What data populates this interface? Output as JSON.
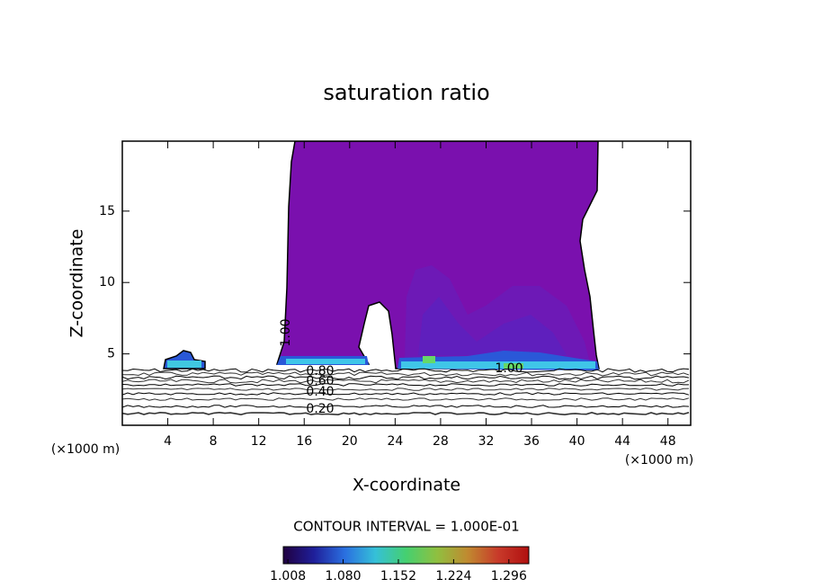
{
  "chart_data": {
    "type": "contour",
    "title": "saturation ratio",
    "x_label": "X-coordinate",
    "y_label": "Z-coordinate",
    "x_unit": "(×1000 m)",
    "y_unit": "(×1000 m)",
    "xlim": [
      0,
      50
    ],
    "ylim": [
      0,
      19.9
    ],
    "xticks": [
      4,
      8,
      12,
      16,
      20,
      24,
      28,
      32,
      36,
      40,
      44,
      48
    ],
    "yticks": [
      5,
      10,
      15
    ],
    "contour_labels": [
      {
        "value": 0.8,
        "label": "0.80"
      },
      {
        "value": 0.6,
        "label": "0.60"
      },
      {
        "value": 0.4,
        "label": "0.40"
      },
      {
        "value": 0.2,
        "label": "0.20"
      },
      {
        "value": 1,
        "label": "1.00"
      },
      {
        "value": 1,
        "label": "1.00"
      }
    ],
    "contour_interval_label": "CONTOUR INTERVAL = 1.000E-01",
    "colorbar": {
      "lim": [
        1.002,
        1.322
      ],
      "ticks": [
        1.008,
        {
          "value": 1.08,
          "label": "1.080"
        },
        1.152,
        1.224,
        1.296
      ],
      "colors": [
        "#200040",
        "#1f1f9a",
        "#2a6fe0",
        "#35c0d8",
        "#45d070",
        "#8fc040",
        "#c08a30",
        "#c83a2a",
        "#b01010"
      ]
    }
  }
}
